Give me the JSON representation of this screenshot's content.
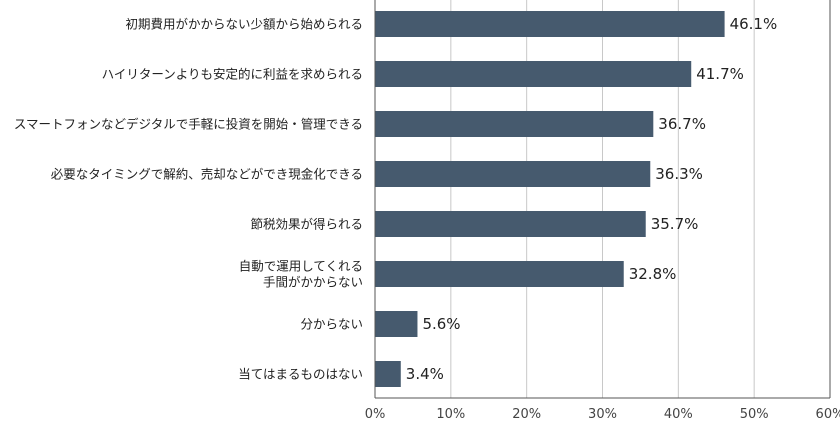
{
  "chart_data": {
    "type": "bar",
    "orientation": "horizontal",
    "categories": [
      [
        "初期費用がかからない少額から始められる"
      ],
      [
        "ハイリターンよりも安定的に利益を求められる"
      ],
      [
        "スマートフォンなどデジタルで手軽に投資を開始・管理できる"
      ],
      [
        "必要なタイミングで解約、売却などができ現金化できる"
      ],
      [
        "節税効果が得られる"
      ],
      [
        "自動で運用してくれる",
        "手間がかからない"
      ],
      [
        "分からない"
      ],
      [
        "当てはまるものはない"
      ]
    ],
    "values": [
      46.1,
      41.7,
      36.7,
      36.3,
      35.7,
      32.8,
      5.6,
      3.4
    ],
    "value_labels": [
      "46.1%",
      "41.7%",
      "36.7%",
      "36.3%",
      "35.7%",
      "32.8%",
      "5.6%",
      "3.4%"
    ],
    "x_ticks": [
      0,
      10,
      20,
      30,
      40,
      50,
      60
    ],
    "x_tick_labels": [
      "0%",
      "10%",
      "20%",
      "30%",
      "40%",
      "50%",
      "60%"
    ],
    "xlim": [
      0,
      60
    ],
    "title": "",
    "xlabel": "",
    "ylabel": "",
    "grid": "vertical",
    "legend": "none",
    "bar_color": "#465a6e",
    "grid_color": "#c8c8c8",
    "axis_color": "#555555"
  }
}
